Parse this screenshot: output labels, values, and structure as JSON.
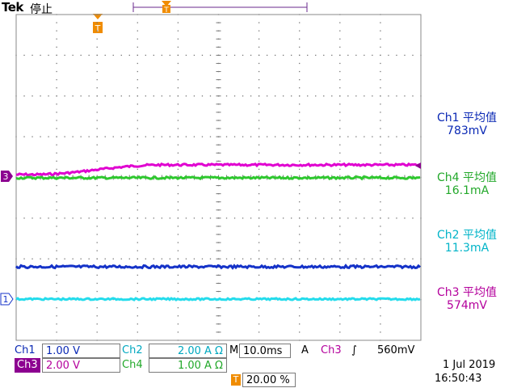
{
  "header": {
    "brand": "Tek",
    "state": "停止"
  },
  "colors": {
    "ch1": "#0a28b4",
    "ch2": "#00b4c8",
    "ch3": "#b4009c",
    "ch4": "#22a82a",
    "trigger": "#f08c00",
    "grid": "#888888"
  },
  "markers": {
    "ch3_marker": "3",
    "ch1_marker": "1"
  },
  "measurements": [
    {
      "name": "Ch1 平均值",
      "value": "783mV",
      "color": "#0a28b4"
    },
    {
      "name": "Ch4 平均值",
      "value": "16.1mA",
      "color": "#22a82a"
    },
    {
      "name": "Ch2 平均值",
      "value": "11.3mA",
      "color": "#00b4c8"
    },
    {
      "name": "Ch3 平均值",
      "value": "574mV",
      "color": "#b4009c"
    }
  ],
  "status": {
    "ch1_label": "Ch1",
    "ch1_scale": "1.00 V",
    "ch2_label": "Ch2",
    "ch2_scale": "2.00 A Ω",
    "ch3_label": "Ch3",
    "ch3_scale": "2.00 V",
    "ch4_label": "Ch4",
    "ch4_scale": "1.00 A Ω",
    "timebase_prefix": "M",
    "timebase": "10.0ms",
    "trigger_mode": "A",
    "trigger_source": "Ch3",
    "trigger_slope": "∫",
    "trigger_level": "560mV",
    "trigger_position": "20.00 %",
    "date": "1 Jul  2019",
    "time": "16:50:43"
  }
}
